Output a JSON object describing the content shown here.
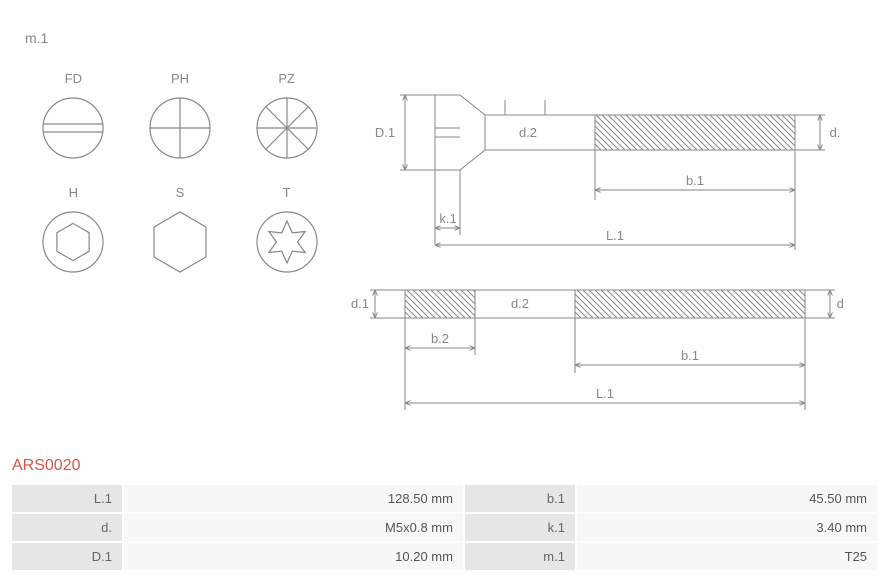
{
  "section_label": "m.1",
  "part_code": "ARS0020",
  "drives": [
    {
      "label": "FD",
      "type": "slot"
    },
    {
      "label": "PH",
      "type": "phillips"
    },
    {
      "label": "PZ",
      "type": "pozidriv"
    },
    {
      "label": "H",
      "type": "hex-socket"
    },
    {
      "label": "S",
      "type": "hex"
    },
    {
      "label": "T",
      "type": "torx"
    }
  ],
  "drive_style": {
    "stroke": "#888888",
    "stroke_width": 1.2,
    "size": 64
  },
  "screw_diagrams": {
    "stroke": "#888888",
    "dim_labels_top": {
      "D1": "D.1",
      "d2": "d.2",
      "d": "d.",
      "b1": "b.1",
      "k1": "k.1",
      "L1": "L.1"
    },
    "dim_labels_bottom": {
      "d1": "d.1",
      "d2": "d.2",
      "d": "d.",
      "b2": "b.2",
      "b1": "b.1",
      "L1": "L.1"
    }
  },
  "spec_rows": [
    {
      "k1": "L.1",
      "v1": "128.50 mm",
      "k2": "b.1",
      "v2": "45.50 mm"
    },
    {
      "k1": "d.",
      "v1": "M5x0.8 mm",
      "k2": "k.1",
      "v2": "3.40 mm"
    },
    {
      "k1": "D.1",
      "v1": "10.20 mm",
      "k2": "m.1",
      "v2": "T25"
    }
  ],
  "colors": {
    "part_code": "#d9534f",
    "table_key_bg": "#e6e6e6",
    "table_val_bg": "#f7f7f7",
    "stroke": "#888888"
  }
}
